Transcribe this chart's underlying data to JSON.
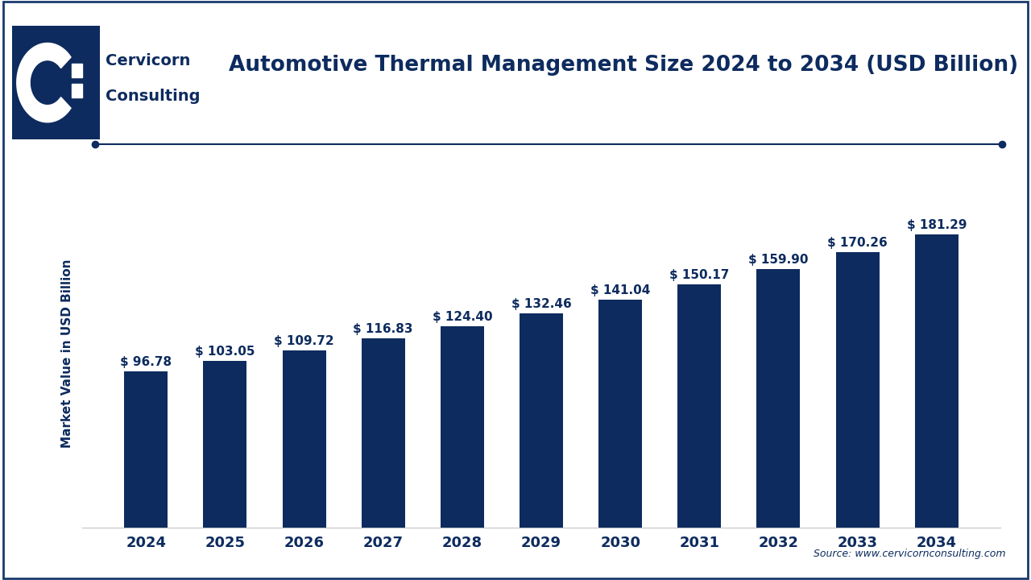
{
  "title": "Automotive Thermal Management Size 2024 to 2034 (USD Billion)",
  "ylabel": "Market Value in USD Billion",
  "source": "Source: www.cervicornconsulting.com",
  "years": [
    "2024",
    "2025",
    "2026",
    "2027",
    "2028",
    "2029",
    "2030",
    "2031",
    "2032",
    "2033",
    "2034"
  ],
  "values": [
    96.78,
    103.05,
    109.72,
    116.83,
    124.4,
    132.46,
    141.04,
    150.17,
    159.9,
    170.26,
    181.29
  ],
  "bar_color": "#0d2b5e",
  "background_color": "#ffffff",
  "grid_color": "#cccccc",
  "title_color": "#0d2b5e",
  "label_color": "#0d2b5e",
  "bar_width": 0.55,
  "ylim": [
    0,
    215
  ],
  "title_fontsize": 19,
  "tick_fontsize": 13,
  "value_fontsize": 11,
  "ylabel_fontsize": 11,
  "logo_box_color": "#0d2b5e",
  "company_name_color": "#0d2b5e",
  "separator_line_color": "#0d2b5e",
  "border_color": "#1a3a6e"
}
